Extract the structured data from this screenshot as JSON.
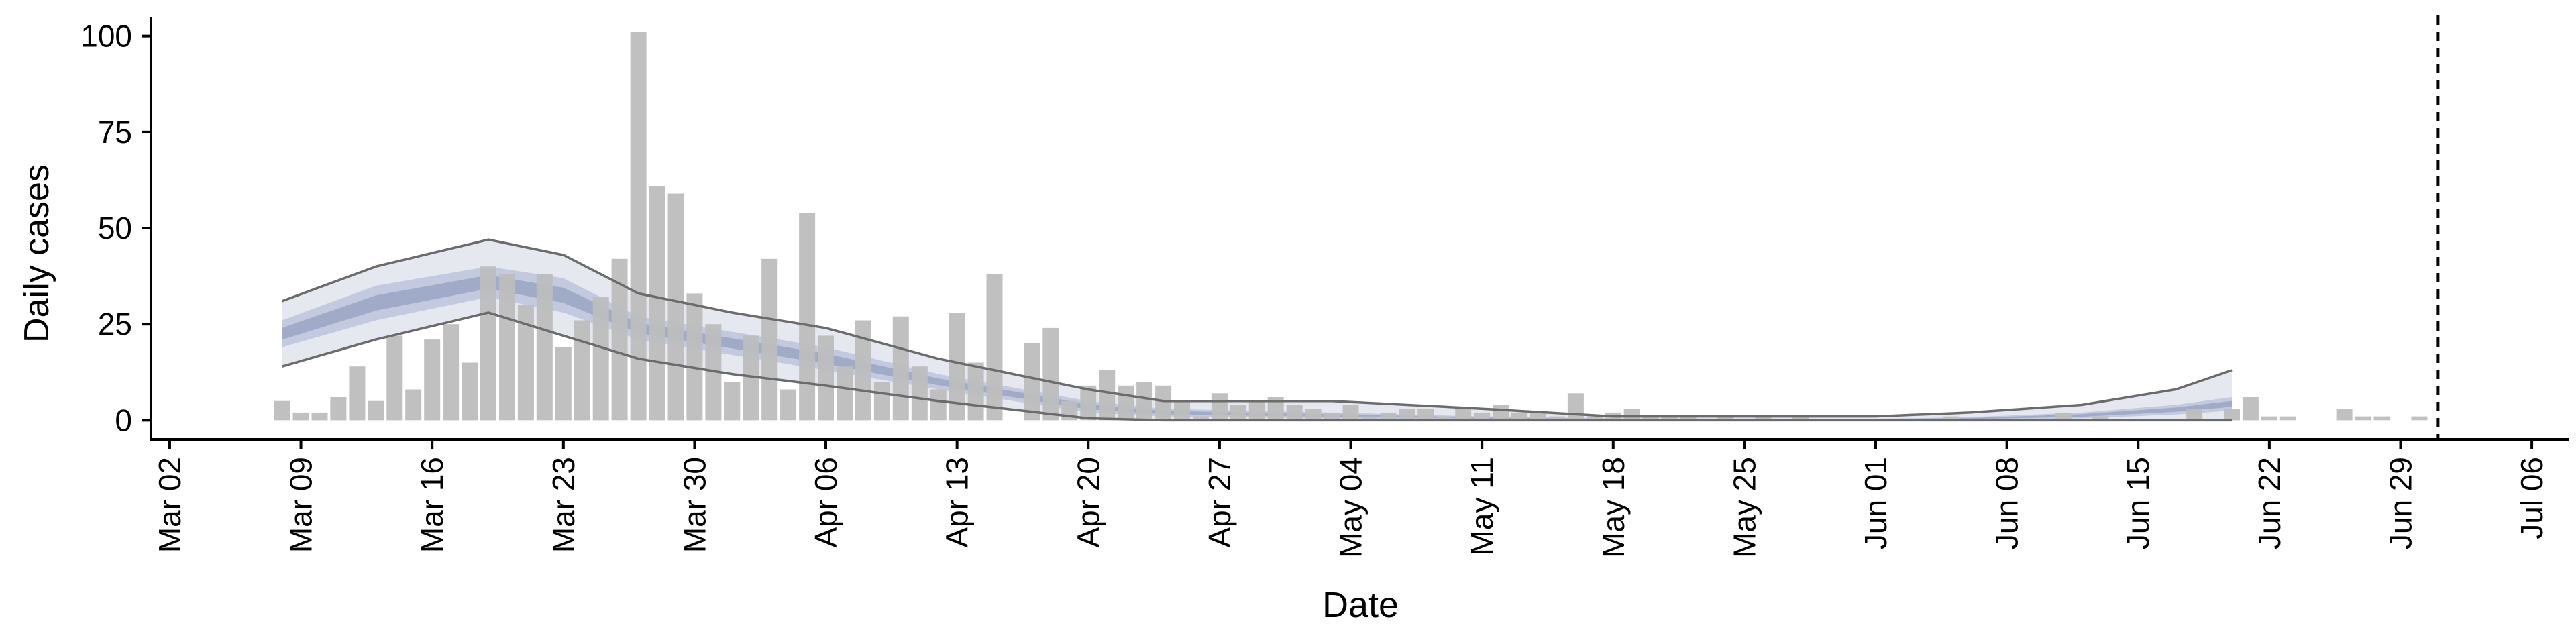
{
  "chart_data": {
    "type": "bar",
    "title": "",
    "xlabel": "Date",
    "ylabel": "Daily cases",
    "ylim": [
      -5,
      105
    ],
    "xlim": [
      "2020-03-01",
      "2020-07-08"
    ],
    "yticks": [
      0,
      25,
      50,
      75,
      100
    ],
    "xticks": [
      {
        "date": "2020-03-02",
        "label": "Mar 02"
      },
      {
        "date": "2020-03-09",
        "label": "Mar 09"
      },
      {
        "date": "2020-03-16",
        "label": "Mar 16"
      },
      {
        "date": "2020-03-23",
        "label": "Mar 23"
      },
      {
        "date": "2020-03-30",
        "label": "Mar 30"
      },
      {
        "date": "2020-04-06",
        "label": "Apr 06"
      },
      {
        "date": "2020-04-13",
        "label": "Apr 13"
      },
      {
        "date": "2020-04-20",
        "label": "Apr 20"
      },
      {
        "date": "2020-04-27",
        "label": "Apr 27"
      },
      {
        "date": "2020-05-04",
        "label": "May 04"
      },
      {
        "date": "2020-05-11",
        "label": "May 11"
      },
      {
        "date": "2020-05-18",
        "label": "May 18"
      },
      {
        "date": "2020-05-25",
        "label": "May 25"
      },
      {
        "date": "2020-06-01",
        "label": "Jun 01"
      },
      {
        "date": "2020-06-08",
        "label": "Jun 08"
      },
      {
        "date": "2020-06-15",
        "label": "Jun 15"
      },
      {
        "date": "2020-06-22",
        "label": "Jun 22"
      },
      {
        "date": "2020-06-29",
        "label": "Jun 29"
      },
      {
        "date": "2020-07-06",
        "label": "Jul 06"
      }
    ],
    "grid": false,
    "vline": {
      "date": "2020-07-01",
      "style": "dashed"
    },
    "colors": {
      "bars": "#bdbdbd",
      "band_outer": "#e6e8f0",
      "band_mid": "#c3cadf",
      "band_inner": "#9aa6c4",
      "interval_lines": "#6b6b6b",
      "axis": "#000000"
    },
    "bars": [
      {
        "date": "2020-03-08",
        "value": 5
      },
      {
        "date": "2020-03-09",
        "value": 2
      },
      {
        "date": "2020-03-10",
        "value": 2
      },
      {
        "date": "2020-03-11",
        "value": 6
      },
      {
        "date": "2020-03-12",
        "value": 14
      },
      {
        "date": "2020-03-13",
        "value": 5
      },
      {
        "date": "2020-03-14",
        "value": 22
      },
      {
        "date": "2020-03-15",
        "value": 8
      },
      {
        "date": "2020-03-16",
        "value": 21
      },
      {
        "date": "2020-03-17",
        "value": 25
      },
      {
        "date": "2020-03-18",
        "value": 15
      },
      {
        "date": "2020-03-19",
        "value": 40
      },
      {
        "date": "2020-03-20",
        "value": 38
      },
      {
        "date": "2020-03-21",
        "value": 30
      },
      {
        "date": "2020-03-22",
        "value": 38
      },
      {
        "date": "2020-03-23",
        "value": 19
      },
      {
        "date": "2020-03-24",
        "value": 26
      },
      {
        "date": "2020-03-25",
        "value": 32
      },
      {
        "date": "2020-03-26",
        "value": 42
      },
      {
        "date": "2020-03-27",
        "value": 101
      },
      {
        "date": "2020-03-28",
        "value": 61
      },
      {
        "date": "2020-03-29",
        "value": 59
      },
      {
        "date": "2020-03-30",
        "value": 33
      },
      {
        "date": "2020-03-31",
        "value": 25
      },
      {
        "date": "2020-04-01",
        "value": 10
      },
      {
        "date": "2020-04-02",
        "value": 22
      },
      {
        "date": "2020-04-03",
        "value": 42
      },
      {
        "date": "2020-04-04",
        "value": 8
      },
      {
        "date": "2020-04-05",
        "value": 54
      },
      {
        "date": "2020-04-06",
        "value": 22
      },
      {
        "date": "2020-04-07",
        "value": 14
      },
      {
        "date": "2020-04-08",
        "value": 26
      },
      {
        "date": "2020-04-09",
        "value": 10
      },
      {
        "date": "2020-04-10",
        "value": 27
      },
      {
        "date": "2020-04-11",
        "value": 14
      },
      {
        "date": "2020-04-12",
        "value": 8
      },
      {
        "date": "2020-04-13",
        "value": 28
      },
      {
        "date": "2020-04-14",
        "value": 15
      },
      {
        "date": "2020-04-15",
        "value": 38
      },
      {
        "date": "2020-04-16",
        "value": 0
      },
      {
        "date": "2020-04-17",
        "value": 20
      },
      {
        "date": "2020-04-18",
        "value": 24
      },
      {
        "date": "2020-04-19",
        "value": 5
      },
      {
        "date": "2020-04-20",
        "value": 9
      },
      {
        "date": "2020-04-21",
        "value": 13
      },
      {
        "date": "2020-04-22",
        "value": 9
      },
      {
        "date": "2020-04-23",
        "value": 10
      },
      {
        "date": "2020-04-24",
        "value": 9
      },
      {
        "date": "2020-04-25",
        "value": 5
      },
      {
        "date": "2020-04-26",
        "value": 1
      },
      {
        "date": "2020-04-27",
        "value": 7
      },
      {
        "date": "2020-04-28",
        "value": 4
      },
      {
        "date": "2020-04-29",
        "value": 5
      },
      {
        "date": "2020-04-30",
        "value": 6
      },
      {
        "date": "2020-05-01",
        "value": 4
      },
      {
        "date": "2020-05-02",
        "value": 3
      },
      {
        "date": "2020-05-03",
        "value": 2
      },
      {
        "date": "2020-05-04",
        "value": 4
      },
      {
        "date": "2020-05-05",
        "value": 1
      },
      {
        "date": "2020-05-06",
        "value": 2
      },
      {
        "date": "2020-05-07",
        "value": 3
      },
      {
        "date": "2020-05-08",
        "value": 3
      },
      {
        "date": "2020-05-09",
        "value": 1
      },
      {
        "date": "2020-05-10",
        "value": 3
      },
      {
        "date": "2020-05-11",
        "value": 2
      },
      {
        "date": "2020-05-12",
        "value": 4
      },
      {
        "date": "2020-05-13",
        "value": 2
      },
      {
        "date": "2020-05-14",
        "value": 2
      },
      {
        "date": "2020-05-15",
        "value": 1
      },
      {
        "date": "2020-05-16",
        "value": 7
      },
      {
        "date": "2020-05-17",
        "value": 1
      },
      {
        "date": "2020-05-18",
        "value": 2
      },
      {
        "date": "2020-05-19",
        "value": 3
      },
      {
        "date": "2020-05-20",
        "value": 1
      },
      {
        "date": "2020-05-21",
        "value": 1
      },
      {
        "date": "2020-05-22",
        "value": 1
      },
      {
        "date": "2020-05-24",
        "value": 1
      },
      {
        "date": "2020-05-26",
        "value": 1
      },
      {
        "date": "2020-05-28",
        "value": 1
      },
      {
        "date": "2020-06-05",
        "value": 1
      },
      {
        "date": "2020-06-11",
        "value": 2
      },
      {
        "date": "2020-06-13",
        "value": 1
      },
      {
        "date": "2020-06-18",
        "value": 3
      },
      {
        "date": "2020-06-20",
        "value": 3
      },
      {
        "date": "2020-06-21",
        "value": 6
      },
      {
        "date": "2020-06-22",
        "value": 1
      },
      {
        "date": "2020-06-23",
        "value": 1
      },
      {
        "date": "2020-06-26",
        "value": 3
      },
      {
        "date": "2020-06-27",
        "value": 1
      },
      {
        "date": "2020-06-28",
        "value": 1
      },
      {
        "date": "2020-06-30",
        "value": 1
      }
    ],
    "interval_start": "2020-03-08",
    "interval_end": "2020-06-20",
    "upper_90": [
      {
        "date": "2020-03-08",
        "value": 31
      },
      {
        "date": "2020-03-13",
        "value": 40
      },
      {
        "date": "2020-03-19",
        "value": 47
      },
      {
        "date": "2020-03-23",
        "value": 43
      },
      {
        "date": "2020-03-27",
        "value": 33
      },
      {
        "date": "2020-04-01",
        "value": 28
      },
      {
        "date": "2020-04-06",
        "value": 24
      },
      {
        "date": "2020-04-12",
        "value": 16
      },
      {
        "date": "2020-04-20",
        "value": 8
      },
      {
        "date": "2020-04-24",
        "value": 5
      },
      {
        "date": "2020-05-03",
        "value": 5
      },
      {
        "date": "2020-05-11",
        "value": 3
      },
      {
        "date": "2020-05-18",
        "value": 1
      },
      {
        "date": "2020-06-01",
        "value": 1
      },
      {
        "date": "2020-06-06",
        "value": 2
      },
      {
        "date": "2020-06-12",
        "value": 4
      },
      {
        "date": "2020-06-17",
        "value": 8
      },
      {
        "date": "2020-06-20",
        "value": 13
      }
    ],
    "upper_50": [
      {
        "date": "2020-03-08",
        "value": 26
      },
      {
        "date": "2020-03-13",
        "value": 35
      },
      {
        "date": "2020-03-19",
        "value": 40
      },
      {
        "date": "2020-03-23",
        "value": 37
      },
      {
        "date": "2020-03-27",
        "value": 27
      },
      {
        "date": "2020-04-01",
        "value": 23
      },
      {
        "date": "2020-04-06",
        "value": 19
      },
      {
        "date": "2020-04-12",
        "value": 12
      },
      {
        "date": "2020-04-20",
        "value": 5
      },
      {
        "date": "2020-04-24",
        "value": 3
      },
      {
        "date": "2020-05-03",
        "value": 2
      },
      {
        "date": "2020-05-11",
        "value": 1
      },
      {
        "date": "2020-05-18",
        "value": 0.5
      },
      {
        "date": "2020-06-01",
        "value": 0.4
      },
      {
        "date": "2020-06-06",
        "value": 0.8
      },
      {
        "date": "2020-06-12",
        "value": 2
      },
      {
        "date": "2020-06-17",
        "value": 4
      },
      {
        "date": "2020-06-20",
        "value": 6
      }
    ],
    "lower_50": [
      {
        "date": "2020-03-08",
        "value": 19
      },
      {
        "date": "2020-03-13",
        "value": 26
      },
      {
        "date": "2020-03-19",
        "value": 32
      },
      {
        "date": "2020-03-23",
        "value": 28
      },
      {
        "date": "2020-03-27",
        "value": 21
      },
      {
        "date": "2020-04-01",
        "value": 17
      },
      {
        "date": "2020-04-06",
        "value": 13
      },
      {
        "date": "2020-04-12",
        "value": 8
      },
      {
        "date": "2020-04-20",
        "value": 2
      },
      {
        "date": "2020-04-24",
        "value": 1
      },
      {
        "date": "2020-05-03",
        "value": 0.5
      },
      {
        "date": "2020-05-11",
        "value": 0.2
      },
      {
        "date": "2020-05-18",
        "value": 0
      },
      {
        "date": "2020-06-01",
        "value": 0
      },
      {
        "date": "2020-06-06",
        "value": 0.1
      },
      {
        "date": "2020-06-12",
        "value": 0.5
      },
      {
        "date": "2020-06-17",
        "value": 1.5
      },
      {
        "date": "2020-06-20",
        "value": 2.5
      }
    ],
    "lower_90": [
      {
        "date": "2020-03-08",
        "value": 14
      },
      {
        "date": "2020-03-13",
        "value": 21
      },
      {
        "date": "2020-03-19",
        "value": 28
      },
      {
        "date": "2020-03-23",
        "value": 22
      },
      {
        "date": "2020-03-27",
        "value": 16
      },
      {
        "date": "2020-04-01",
        "value": 12
      },
      {
        "date": "2020-04-06",
        "value": 9
      },
      {
        "date": "2020-04-12",
        "value": 5
      },
      {
        "date": "2020-04-20",
        "value": 0.5
      },
      {
        "date": "2020-04-24",
        "value": 0
      },
      {
        "date": "2020-06-20",
        "value": 0
      }
    ]
  }
}
